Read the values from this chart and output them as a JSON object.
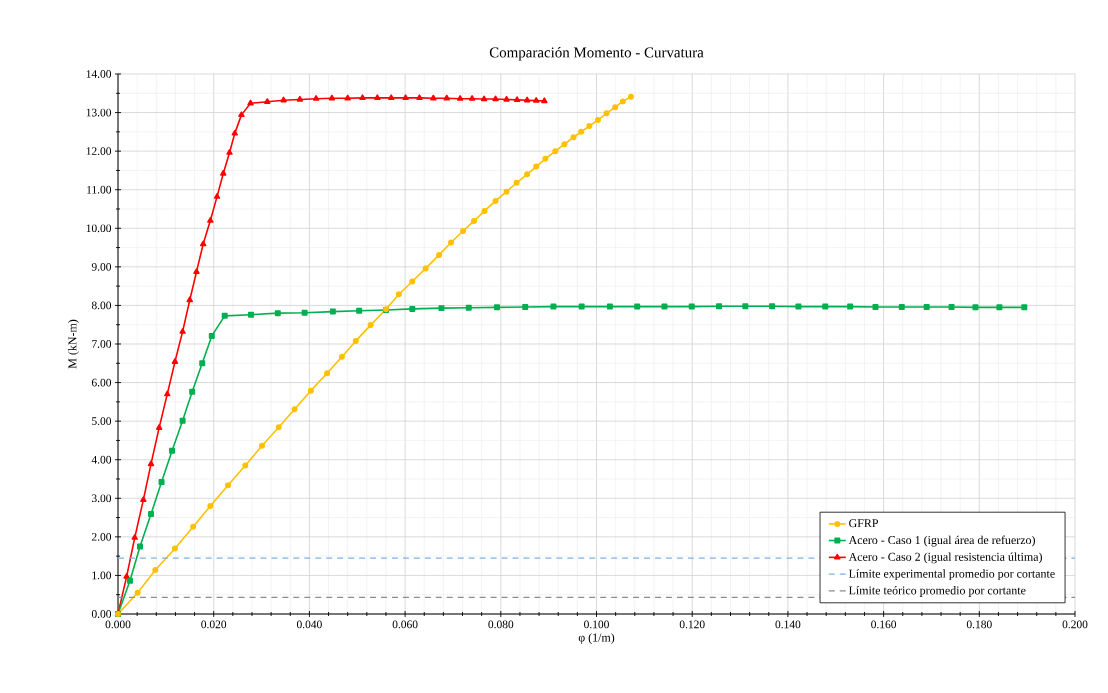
{
  "chart_data": {
    "type": "line",
    "title": "Comparación Momento - Curvatura",
    "xlabel": "φ (1/m)",
    "ylabel": "M (kN-m)",
    "xlim": [
      0,
      0.2
    ],
    "ylim": [
      0,
      14
    ],
    "xticks": [
      {
        "value": 0,
        "label": "0.000"
      },
      {
        "value": 0.02,
        "label": "0.020"
      },
      {
        "value": 0.04,
        "label": "0.040"
      },
      {
        "value": 0.06,
        "label": "0.060"
      },
      {
        "value": 0.08,
        "label": "0.080"
      },
      {
        "value": 0.1,
        "label": "0.100"
      },
      {
        "value": 0.12,
        "label": "0.120"
      },
      {
        "value": 0.14,
        "label": "0.140"
      },
      {
        "value": 0.16,
        "label": "0.160"
      },
      {
        "value": 0.18,
        "label": "0.180"
      },
      {
        "value": 0.2,
        "label": "0.200"
      }
    ],
    "yticks": [
      {
        "value": 0,
        "label": "0.00"
      },
      {
        "value": 1,
        "label": "1.00"
      },
      {
        "value": 2,
        "label": "2.00"
      },
      {
        "value": 3,
        "label": "3.00"
      },
      {
        "value": 4,
        "label": "4.00"
      },
      {
        "value": 5,
        "label": "5.00"
      },
      {
        "value": 6,
        "label": "6.00"
      },
      {
        "value": 7,
        "label": "7.00"
      },
      {
        "value": 8,
        "label": "8.00"
      },
      {
        "value": 9,
        "label": "9.00"
      },
      {
        "value": 10,
        "label": "10.00"
      },
      {
        "value": 11,
        "label": "11.00"
      },
      {
        "value": 12,
        "label": "12.00"
      },
      {
        "value": 13,
        "label": "13.00"
      },
      {
        "value": 14,
        "label": "14.00"
      }
    ],
    "grid": true,
    "legend": "bottom right",
    "series": [
      {
        "name": "GFRP",
        "color": "#ffc000",
        "marker": "circle",
        "x": [
          0,
          0.0041,
          0.0078,
          0.0119,
          0.0157,
          0.0193,
          0.023,
          0.0266,
          0.0301,
          0.0336,
          0.0369,
          0.0403,
          0.0437,
          0.0468,
          0.0497,
          0.0528,
          0.056,
          0.0587,
          0.0615,
          0.0643,
          0.0671,
          0.0696,
          0.0721,
          0.0744,
          0.0766,
          0.0789,
          0.0812,
          0.0833,
          0.0855,
          0.0874,
          0.0893,
          0.0914,
          0.0933,
          0.0952,
          0.0968,
          0.0985,
          0.1003,
          0.1021,
          0.1039,
          0.1055,
          0.1072
        ],
        "values": [
          0,
          0.55,
          1.14,
          1.7,
          2.26,
          2.8,
          3.34,
          3.85,
          4.36,
          4.84,
          5.31,
          5.79,
          6.24,
          6.67,
          7.08,
          7.49,
          7.9,
          8.29,
          8.62,
          8.96,
          9.31,
          9.63,
          9.93,
          10.19,
          10.45,
          10.71,
          10.95,
          11.18,
          11.4,
          11.6,
          11.8,
          12.0,
          12.18,
          12.36,
          12.5,
          12.65,
          12.81,
          12.98,
          13.14,
          13.29,
          13.41
        ]
      },
      {
        "name": "Acero - Caso 1 (igual área de refuerzo)",
        "color": "#00b050",
        "marker": "square",
        "x": [
          0,
          0.0025,
          0.0046,
          0.0069,
          0.0091,
          0.0113,
          0.0135,
          0.0155,
          0.0176,
          0.0196,
          0.0223,
          0.0278,
          0.0334,
          0.039,
          0.0449,
          0.0504,
          0.056,
          0.0615,
          0.0676,
          0.0733,
          0.0792,
          0.0851,
          0.091,
          0.0969,
          0.1028,
          0.1085,
          0.1142,
          0.1199,
          0.1256,
          0.1311,
          0.1367,
          0.1422,
          0.1478,
          0.153,
          0.1583,
          0.1638,
          0.169,
          0.1742,
          0.1792,
          0.1842,
          0.1894
        ],
        "values": [
          0,
          0.86,
          1.75,
          2.59,
          3.42,
          4.23,
          5.01,
          5.76,
          6.5,
          7.21,
          7.73,
          7.76,
          7.8,
          7.81,
          7.84,
          7.86,
          7.88,
          7.91,
          7.93,
          7.94,
          7.95,
          7.96,
          7.97,
          7.97,
          7.97,
          7.97,
          7.97,
          7.97,
          7.98,
          7.98,
          7.98,
          7.97,
          7.97,
          7.97,
          7.96,
          7.96,
          7.96,
          7.96,
          7.95,
          7.95,
          7.95
        ]
      },
      {
        "name": "Acero - Caso 2 (igual resistencia última)",
        "color": "#ff0000",
        "marker": "triangle",
        "x": [
          0,
          0.0018,
          0.0035,
          0.0053,
          0.0069,
          0.0086,
          0.0103,
          0.0119,
          0.0135,
          0.015,
          0.0164,
          0.0178,
          0.0193,
          0.0207,
          0.022,
          0.0233,
          0.0244,
          0.0258,
          0.0277,
          0.0312,
          0.0346,
          0.038,
          0.0414,
          0.0447,
          0.048,
          0.0511,
          0.0542,
          0.0571,
          0.0601,
          0.063,
          0.0659,
          0.0687,
          0.0715,
          0.074,
          0.0765,
          0.0789,
          0.0812,
          0.0834,
          0.0855,
          0.0874,
          0.0891
        ],
        "values": [
          0,
          0.97,
          1.98,
          2.96,
          3.89,
          4.83,
          5.7,
          6.54,
          7.32,
          8.14,
          8.87,
          9.59,
          10.2,
          10.82,
          11.42,
          11.96,
          12.46,
          12.94,
          13.24,
          13.28,
          13.32,
          13.34,
          13.36,
          13.37,
          13.37,
          13.38,
          13.38,
          13.38,
          13.38,
          13.38,
          13.37,
          13.37,
          13.36,
          13.36,
          13.35,
          13.35,
          13.34,
          13.33,
          13.32,
          13.31,
          13.3
        ]
      }
    ],
    "ref_lines": [
      {
        "axis": "y",
        "value": 1.45,
        "label": "Límite experimental promedio por cortante",
        "color": "#7fb2e0",
        "line_style": "dashed"
      },
      {
        "axis": "y",
        "value": 0.43,
        "label": "Límite teórico promedio por cortante",
        "color": "#8c8c8c",
        "line_style": "dashed"
      }
    ]
  }
}
